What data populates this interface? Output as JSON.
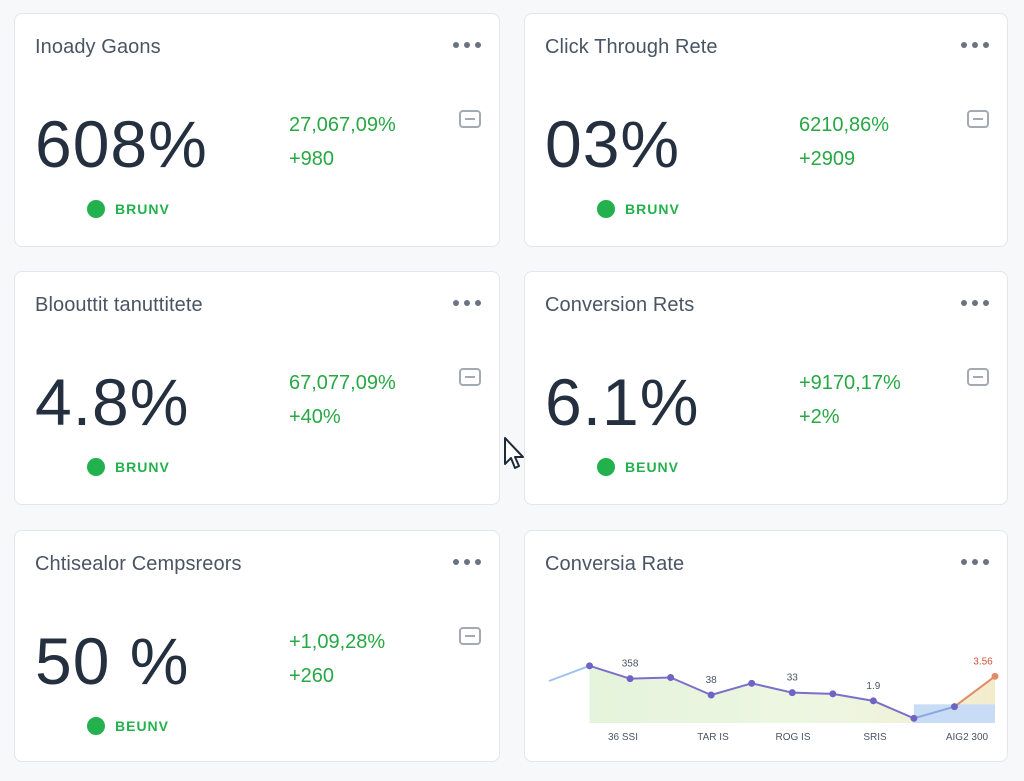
{
  "colors": {
    "positive": "#22b14c",
    "title": "#4a5563",
    "value": "#24303f"
  },
  "cards": [
    {
      "title": "Inoady Gaons",
      "value": "608%",
      "delta_primary": "27,067,09%",
      "delta_secondary": "+980",
      "status": "BRUNV"
    },
    {
      "title": "Click Through Rete",
      "value": "03%",
      "delta_primary": "6210,86%",
      "delta_secondary": "+2909",
      "status": "BRUNV"
    },
    {
      "title": "Bloouttit tanuttitete",
      "value": "4.8%",
      "delta_primary": "67,077,09%",
      "delta_secondary": "+40%",
      "status": "BRUNV"
    },
    {
      "title": "Conversion Rets",
      "value": "6.1%",
      "delta_primary": "+9170,17%",
      "delta_secondary": "+2%",
      "status": "BEUNV"
    },
    {
      "title": "Chtisealor Cempsreors",
      "value": "50 %",
      "delta_primary": "+1,09,28%",
      "delta_secondary": "+260",
      "status": "BEUNV"
    }
  ],
  "chart_card": {
    "title": "Conversia Rate"
  },
  "chart_data": {
    "type": "line",
    "title": "Conversia Rate",
    "x_tick_labels": [
      "36 SSI",
      "TAR IS",
      "ROG IS",
      "SRIS",
      "AIG2 300"
    ],
    "data_labels": [
      "358",
      "38",
      "33",
      "1.9",
      "3.56"
    ],
    "series": [
      {
        "values": [
          36,
          49,
          38,
          39,
          24,
          34,
          26,
          25,
          19,
          4,
          14,
          40
        ]
      }
    ],
    "ylim": [
      0,
      60
    ],
    "grid": false,
    "legend": "none"
  }
}
